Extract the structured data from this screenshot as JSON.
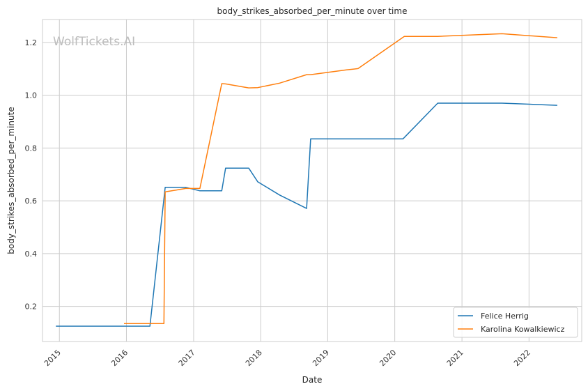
{
  "chart_data": {
    "type": "line",
    "title": "body_strikes_absorbed_per_minute over time",
    "xlabel": "Date",
    "ylabel": "body_strikes_absorbed_per_minute",
    "watermark": "WolfTickets.AI",
    "x_ticks": [
      "2015",
      "2016",
      "2017",
      "2018",
      "2019",
      "2020",
      "2021",
      "2022"
    ],
    "y_ticks": [
      "0.2",
      "0.4",
      "0.6",
      "0.8",
      "1.0",
      "1.2"
    ],
    "xlim": [
      "2014-10-01",
      "2022-10-15"
    ],
    "ylim": [
      0.067,
      1.287
    ],
    "grid": true,
    "legend_position": "lower-right",
    "series": [
      {
        "name": "Felice Herrig",
        "color": "#1f77b4",
        "points": [
          [
            "2014-12-13",
            0.125
          ],
          [
            "2016-05-08",
            0.125
          ],
          [
            "2016-07-30",
            0.651
          ],
          [
            "2016-11-19",
            0.651
          ],
          [
            "2017-02-04",
            0.638
          ],
          [
            "2017-06-03",
            0.638
          ],
          [
            "2017-06-24",
            0.724
          ],
          [
            "2017-10-28",
            0.724
          ],
          [
            "2017-12-16",
            0.672
          ],
          [
            "2018-04-14",
            0.622
          ],
          [
            "2018-09-08",
            0.571
          ],
          [
            "2018-09-30",
            0.835
          ],
          [
            "2020-02-15",
            0.835
          ],
          [
            "2020-08-22",
            0.97
          ],
          [
            "2021-08-07",
            0.97
          ],
          [
            "2022-06-04",
            0.962
          ]
        ]
      },
      {
        "name": "Karolina Kowalkiewicz",
        "color": "#ff7f0e",
        "points": [
          [
            "2015-12-19",
            0.135
          ],
          [
            "2016-07-23",
            0.135
          ],
          [
            "2016-07-30",
            0.634
          ],
          [
            "2016-11-19",
            0.647
          ],
          [
            "2017-02-04",
            0.647
          ],
          [
            "2017-06-03",
            1.044
          ],
          [
            "2017-06-24",
            1.043
          ],
          [
            "2017-10-28",
            1.028
          ],
          [
            "2017-12-16",
            1.029
          ],
          [
            "2018-04-14",
            1.046
          ],
          [
            "2018-09-08",
            1.078
          ],
          [
            "2018-09-30",
            1.078
          ],
          [
            "2019-04-13",
            1.096
          ],
          [
            "2019-06-15",
            1.101
          ],
          [
            "2020-02-22",
            1.223
          ],
          [
            "2020-08-22",
            1.223
          ],
          [
            "2021-08-07",
            1.233
          ],
          [
            "2022-06-04",
            1.218
          ]
        ]
      }
    ]
  }
}
